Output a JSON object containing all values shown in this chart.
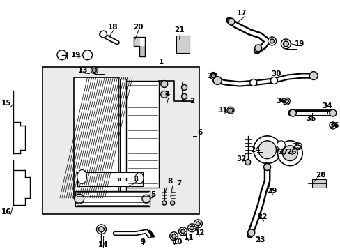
{
  "bg_color": "#ffffff",
  "figsize": [
    4.89,
    3.6
  ],
  "dpi": 100,
  "black": "#000000",
  "gray_box": "#ebebeb",
  "label_fs": 7.5
}
